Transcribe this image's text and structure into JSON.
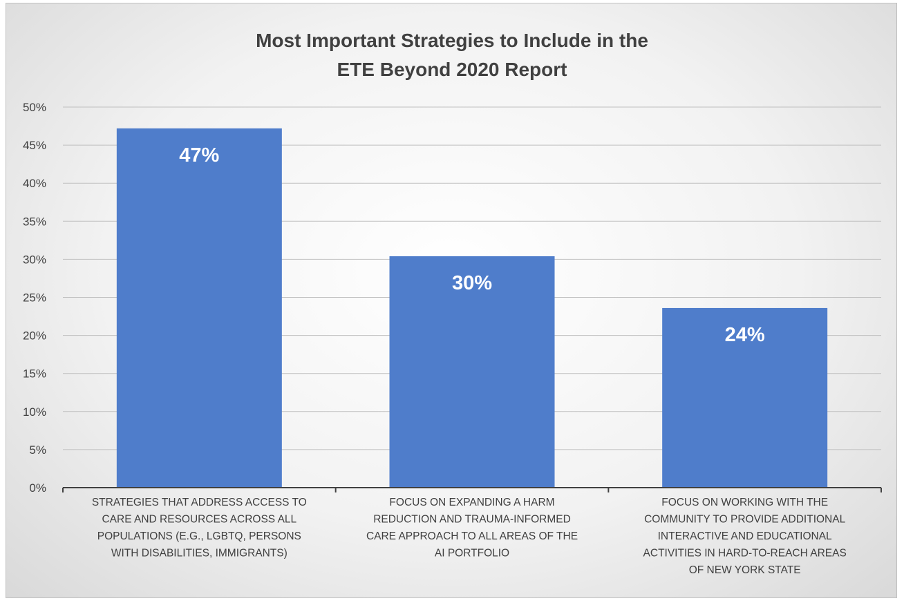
{
  "chart_data": {
    "type": "bar",
    "title_lines": [
      "Most Important Strategies to Include in the",
      "ETE Beyond 2020 Report"
    ],
    "categories": [
      [
        "STRATEGIES THAT ADDRESS ACCESS TO",
        "CARE AND RESOURCES ACROSS ALL",
        "POPULATIONS (E.G., LGBTQ, PERSONS",
        "WITH DISABILITIES, IMMIGRANTS)"
      ],
      [
        "FOCUS ON EXPANDING A HARM",
        "REDUCTION AND TRAUMA-INFORMED",
        "CARE APPROACH TO ALL AREAS OF THE",
        "AI PORTFOLIO"
      ],
      [
        "FOCUS ON WORKING WITH THE",
        "COMMUNITY TO PROVIDE ADDITIONAL",
        "INTERACTIVE AND EDUCATIONAL",
        "ACTIVITIES IN HARD-TO-REACH AREAS",
        "OF NEW YORK STATE"
      ]
    ],
    "values": [
      47.2,
      30.4,
      23.6
    ],
    "data_labels": [
      "47%",
      "30%",
      "24%"
    ],
    "ylim": [
      0,
      50
    ],
    "yticks": [
      0,
      5,
      10,
      15,
      20,
      25,
      30,
      35,
      40,
      45,
      50
    ],
    "ytick_labels": [
      "0%",
      "5%",
      "10%",
      "15%",
      "20%",
      "25%",
      "30%",
      "35%",
      "40%",
      "45%",
      "50%"
    ],
    "grid": true,
    "legend": "none",
    "bar_color": "#4f7dcb",
    "grid_color": "#bfbfbf",
    "axis_color": "#404040"
  }
}
